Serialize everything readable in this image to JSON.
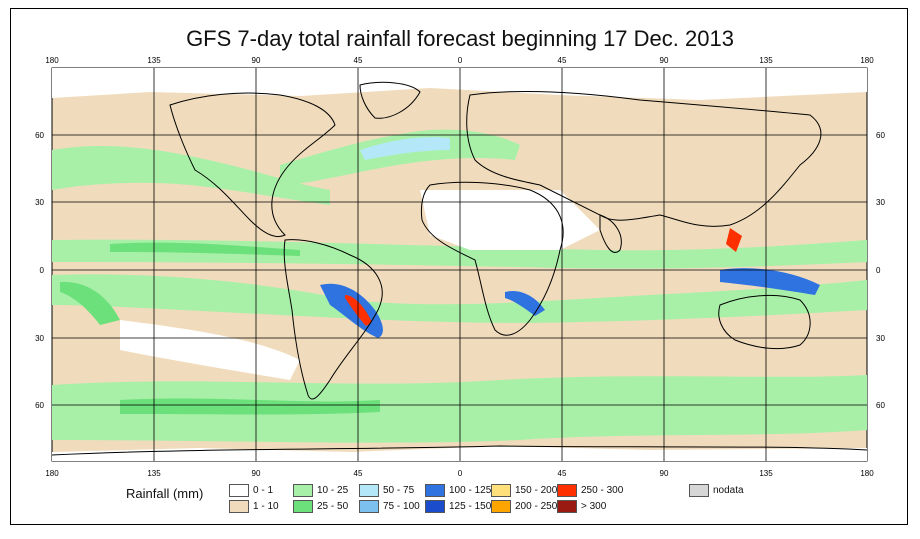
{
  "title": "GFS 7-day total rainfall forecast beginning 17 Dec. 2013",
  "longitude_ticks": [
    "180",
    "135",
    "90",
    "45",
    "0",
    "45",
    "90",
    "135",
    "180"
  ],
  "latitude_ticks": [
    "60",
    "30",
    "0",
    "30",
    "60"
  ],
  "legend": {
    "title": "Rainfall (mm)",
    "items": [
      {
        "label": "0 - 1",
        "color": "#ffffff"
      },
      {
        "label": "1 - 10",
        "color": "#f0dcbc"
      },
      {
        "label": "10 - 25",
        "color": "#a8f0a8"
      },
      {
        "label": "25 - 50",
        "color": "#6ce07a"
      },
      {
        "label": "50 - 75",
        "color": "#b4e8f8"
      },
      {
        "label": "75 - 100",
        "color": "#7cc0f0"
      },
      {
        "label": "100 - 125",
        "color": "#2f73e0"
      },
      {
        "label": "125 - 150",
        "color": "#1a4ccc"
      },
      {
        "label": "150 - 200",
        "color": "#ffe07a"
      },
      {
        "label": "200 - 250",
        "color": "#ffa500"
      },
      {
        "label": "250 - 300",
        "color": "#ff3000"
      },
      {
        "label": "> 300",
        "color": "#9a1a12"
      },
      {
        "label": "nodata",
        "color": "#d6d6d6"
      }
    ]
  }
}
